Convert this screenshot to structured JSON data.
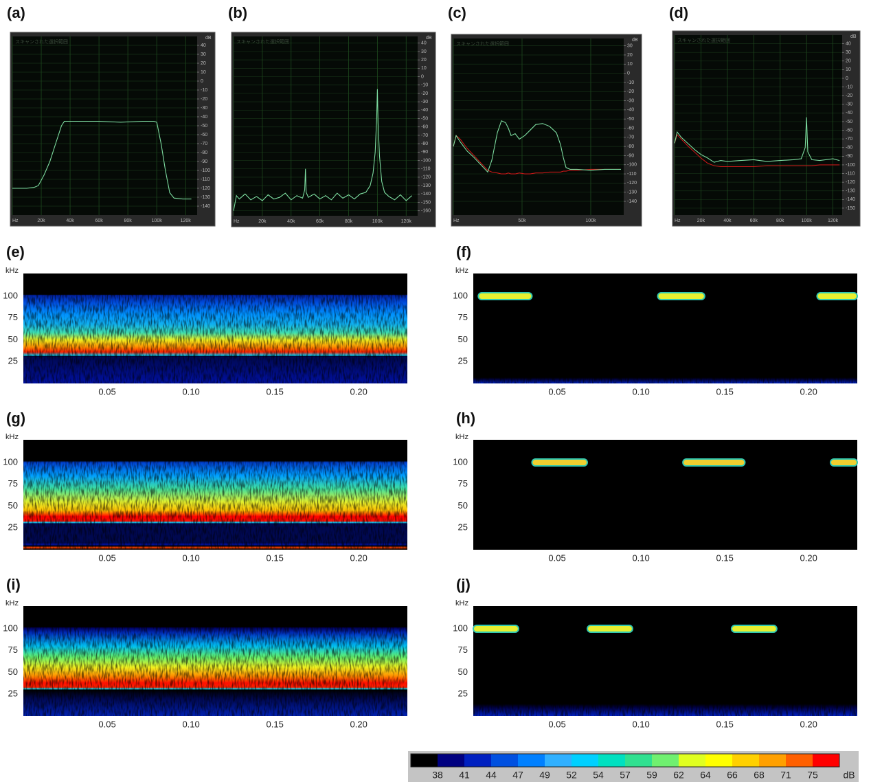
{
  "chart_data": [
    {
      "type": "line",
      "label": "(a)",
      "caption": "スキャンされた選択範囲",
      "y_unit": "dB",
      "grid": true,
      "xlim": [
        0,
        128000
      ],
      "ylim": [
        -150,
        50
      ],
      "xticks": [
        {
          "value": 0,
          "label": "Hz"
        },
        {
          "value": 20000,
          "label": "20k"
        },
        {
          "value": 40000,
          "label": "40k"
        },
        {
          "value": 60000,
          "label": "60k"
        },
        {
          "value": 80000,
          "label": "80k"
        },
        {
          "value": 100000,
          "label": "100k"
        },
        {
          "value": 120000,
          "label": "120k"
        }
      ],
      "yticks": [
        40,
        30,
        20,
        10,
        0,
        -10,
        -20,
        -30,
        -40,
        -50,
        -60,
        -70,
        -80,
        -90,
        -100,
        -110,
        -120,
        -130,
        -140
      ],
      "x": [
        0,
        5000,
        10000,
        15000,
        18000,
        22000,
        26000,
        30000,
        34000,
        36000,
        45000,
        60000,
        75000,
        90000,
        98000,
        100000,
        103000,
        106000,
        109000,
        112000,
        118000,
        124000
      ],
      "series": [
        {
          "color": "#7ddca0",
          "values": [
            -120,
            -120,
            -120,
            -119,
            -117,
            -105,
            -90,
            -70,
            -50,
            -45,
            -45,
            -45,
            -46,
            -45,
            -45,
            -46,
            -70,
            -100,
            -125,
            -131,
            -132,
            -132
          ]
        }
      ]
    },
    {
      "type": "line",
      "label": "(b)",
      "caption": "スキャンされた選択範囲",
      "y_unit": "dB",
      "grid": true,
      "xlim": [
        0,
        128000
      ],
      "ylim": [
        -166,
        48
      ],
      "xticks": [
        {
          "value": 0,
          "label": "Hz"
        },
        {
          "value": 20000,
          "label": "20k"
        },
        {
          "value": 40000,
          "label": "40k"
        },
        {
          "value": 60000,
          "label": "60k"
        },
        {
          "value": 80000,
          "label": "80k"
        },
        {
          "value": 100000,
          "label": "100k"
        },
        {
          "value": 120000,
          "label": "120k"
        }
      ],
      "yticks": [
        40,
        30,
        20,
        10,
        0,
        -10,
        -20,
        -30,
        -40,
        -50,
        -60,
        -70,
        -80,
        -90,
        -100,
        -110,
        -120,
        -130,
        -140,
        -150,
        -160
      ],
      "x": [
        0,
        2000,
        4000,
        8000,
        12000,
        16000,
        20000,
        24000,
        28000,
        32000,
        36000,
        40000,
        44000,
        48000,
        49500,
        50000,
        50500,
        52000,
        56000,
        60000,
        64000,
        68000,
        72000,
        76000,
        80000,
        84000,
        88000,
        92000,
        95000,
        97000,
        98500,
        99500,
        100000,
        100500,
        101500,
        103000,
        105000,
        108000,
        112000,
        116000,
        120000,
        124000
      ],
      "series": [
        {
          "color": "#7ddca0",
          "values": [
            -160,
            -142,
            -146,
            -140,
            -147,
            -143,
            -148,
            -141,
            -146,
            -144,
            -139,
            -147,
            -142,
            -145,
            -135,
            -110,
            -138,
            -144,
            -140,
            -146,
            -142,
            -147,
            -139,
            -145,
            -141,
            -146,
            -140,
            -138,
            -130,
            -115,
            -90,
            -50,
            -15,
            -55,
            -95,
            -125,
            -138,
            -143,
            -147,
            -141,
            -148,
            -142
          ]
        }
      ]
    },
    {
      "type": "line",
      "label": "(c)",
      "caption": "スキャンされた選択範囲",
      "y_unit": "dB",
      "grid": true,
      "xlim": [
        0,
        124000
      ],
      "ylim": [
        -155,
        38
      ],
      "xticks": [
        {
          "value": 0,
          "label": "Hz"
        },
        {
          "value": 50000,
          "label": "50k"
        },
        {
          "value": 100000,
          "label": "100k"
        }
      ],
      "yticks": [
        30,
        20,
        10,
        0,
        -10,
        -20,
        -30,
        -40,
        -50,
        -60,
        -70,
        -80,
        -90,
        -100,
        -110,
        -120,
        -130,
        -140
      ],
      "x": [
        0,
        2000,
        5000,
        10000,
        15000,
        20000,
        25000,
        28000,
        32000,
        35000,
        38000,
        40000,
        42000,
        45000,
        48000,
        52000,
        56000,
        60000,
        65000,
        70000,
        75000,
        78000,
        80000,
        82000,
        85000,
        90000,
        100000,
        110000,
        122000
      ],
      "series": [
        {
          "color": "#7ddca0",
          "values": [
            -80,
            -68,
            -75,
            -85,
            -92,
            -100,
            -108,
            -95,
            -65,
            -52,
            -54,
            -60,
            -68,
            -66,
            -72,
            -68,
            -62,
            -56,
            -55,
            -58,
            -65,
            -78,
            -92,
            -103,
            -105,
            -105,
            -106,
            -105,
            -105
          ]
        },
        {
          "color": "#c81818",
          "values": [
            -80,
            -68,
            -72,
            -82,
            -90,
            -98,
            -106,
            -108,
            -109,
            -110,
            -110,
            -109,
            -110,
            -110,
            -109,
            -110,
            -110,
            -109,
            -109,
            -108,
            -108,
            -108,
            -107,
            -107,
            -106,
            -106,
            -105,
            -105,
            -105
          ]
        }
      ]
    },
    {
      "type": "line",
      "label": "(d)",
      "caption": "スキャンされた選択範囲",
      "y_unit": "dB",
      "grid": true,
      "xlim": [
        0,
        127000
      ],
      "ylim": [
        -158,
        50
      ],
      "xticks": [
        {
          "value": 0,
          "label": "Hz"
        },
        {
          "value": 20000,
          "label": "20k"
        },
        {
          "value": 40000,
          "label": "40k"
        },
        {
          "value": 60000,
          "label": "60k"
        },
        {
          "value": 80000,
          "label": "80k"
        },
        {
          "value": 100000,
          "label": "100k"
        },
        {
          "value": 120000,
          "label": "120k"
        }
      ],
      "yticks": [
        40,
        30,
        20,
        10,
        0,
        -10,
        -20,
        -30,
        -40,
        -50,
        -60,
        -70,
        -80,
        -90,
        -100,
        -110,
        -120,
        -130,
        -140,
        -150
      ],
      "x": [
        0,
        2000,
        5000,
        10000,
        15000,
        20000,
        25000,
        30000,
        35000,
        40000,
        50000,
        60000,
        70000,
        80000,
        90000,
        96000,
        99000,
        100000,
        101000,
        104000,
        110000,
        120000,
        125000
      ],
      "series": [
        {
          "color": "#7ddca0",
          "values": [
            -75,
            -62,
            -68,
            -75,
            -82,
            -88,
            -92,
            -97,
            -95,
            -96,
            -95,
            -94,
            -96,
            -95,
            -94,
            -93,
            -80,
            -45,
            -85,
            -94,
            -95,
            -93,
            -95
          ]
        },
        {
          "color": "#c81818",
          "values": [
            -75,
            -65,
            -70,
            -78,
            -85,
            -92,
            -98,
            -101,
            -102,
            -102,
            -102,
            -102,
            -101,
            -101,
            -101,
            -101,
            -101,
            -101,
            -101,
            -101,
            -100,
            -100,
            -100
          ]
        }
      ]
    },
    {
      "type": "heatmap",
      "label": "(e)",
      "y_label": "kHz",
      "xlim": [
        0,
        0.229
      ],
      "ylim": [
        0,
        126
      ],
      "xticks": [
        0.05,
        {
          "value": 0.1,
          "label": "0.10"
        },
        0.15,
        {
          "value": 0.2,
          "label": "0.20"
        }
      ],
      "yticks": [
        25,
        50,
        75,
        100
      ],
      "profile": {
        "khz": [
          0,
          31,
          31.5,
          32,
          36,
          42,
          50,
          58,
          68,
          80,
          92,
          101,
          102,
          126
        ],
        "colors": [
          "#0010a0",
          "#000850",
          "#000000",
          "#00d0ff",
          "#ff2000",
          "#ff9000",
          "#f0f020",
          "#40e0b0",
          "#10b0f0",
          "#0090ff",
          "#0050e0",
          "#0020a0",
          "#000000",
          "#000000"
        ]
      }
    },
    {
      "type": "heatmap",
      "label": "(f)",
      "y_label": "kHz",
      "xlim": [
        0,
        0.229
      ],
      "ylim": [
        0,
        126
      ],
      "xticks": [
        0.05,
        {
          "value": 0.1,
          "label": "0.10"
        },
        0.15,
        {
          "value": 0.2,
          "label": "0.20"
        }
      ],
      "yticks": [
        25,
        50,
        75,
        100
      ],
      "profile": {
        "khz": [
          0,
          5,
          7,
          126
        ],
        "colors": [
          "#0020c0",
          "#000030",
          "#000000",
          "#000000"
        ]
      },
      "pulse_color": "#e8f030",
      "pulses": [
        {
          "start": 0.003,
          "end": 0.035,
          "khz": 100
        },
        {
          "start": 0.11,
          "end": 0.138,
          "khz": 100
        },
        {
          "start": 0.205,
          "end": 0.229,
          "khz": 100
        }
      ]
    },
    {
      "type": "heatmap",
      "label": "(g)",
      "y_label": "kHz",
      "xlim": [
        0,
        0.229
      ],
      "ylim": [
        0,
        126
      ],
      "xticks": [
        0.05,
        {
          "value": 0.1,
          "label": "0.10"
        },
        0.15,
        {
          "value": 0.2,
          "label": "0.20"
        }
      ],
      "yticks": [
        25,
        50,
        75,
        100
      ],
      "profile": {
        "khz": [
          0,
          3,
          4,
          6,
          8,
          30,
          31,
          33,
          38,
          45,
          55,
          70,
          85,
          100,
          102,
          126
        ],
        "colors": [
          "#000000",
          "#ff4000",
          "#000000",
          "#0010a0",
          "#000850",
          "#000850",
          "#00d0ff",
          "#ff1000",
          "#ff0000",
          "#ffc000",
          "#e0f030",
          "#40e0a0",
          "#00a0ff",
          "#0040d0",
          "#000000",
          "#000000"
        ]
      }
    },
    {
      "type": "heatmap",
      "label": "(h)",
      "y_label": "kHz",
      "xlim": [
        0,
        0.229
      ],
      "ylim": [
        0,
        126
      ],
      "xticks": [
        0.05,
        {
          "value": 0.1,
          "label": "0.10"
        },
        0.15,
        {
          "value": 0.2,
          "label": "0.20"
        }
      ],
      "yticks": [
        25,
        50,
        75,
        100
      ],
      "profile": {
        "khz": [
          0,
          126
        ],
        "colors": [
          "#000000",
          "#000000"
        ]
      },
      "pulse_color": "#f0d030",
      "pulses": [
        {
          "start": 0.035,
          "end": 0.068,
          "khz": 100
        },
        {
          "start": 0.125,
          "end": 0.162,
          "khz": 100
        },
        {
          "start": 0.213,
          "end": 0.229,
          "khz": 100
        }
      ]
    },
    {
      "type": "heatmap",
      "label": "(i)",
      "y_label": "kHz",
      "xlim": [
        0,
        0.229
      ],
      "ylim": [
        0,
        126
      ],
      "xticks": [
        0.05,
        {
          "value": 0.1,
          "label": "0.10"
        },
        0.15,
        {
          "value": 0.2,
          "label": "0.20"
        }
      ],
      "yticks": [
        25,
        50,
        75,
        100
      ],
      "profile": {
        "khz": [
          0,
          20,
          30,
          31,
          33,
          38,
          46,
          56,
          68,
          80,
          95,
          101,
          102,
          126
        ],
        "colors": [
          "#0020b0",
          "#000850",
          "#000000",
          "#00e0ff",
          "#ff2000",
          "#ff1000",
          "#ff9000",
          "#f0f020",
          "#60f070",
          "#00c0f0",
          "#0030c0",
          "#000060",
          "#000000",
          "#000000"
        ]
      }
    },
    {
      "type": "heatmap",
      "label": "(j)",
      "y_label": "kHz",
      "xlim": [
        0,
        0.229
      ],
      "ylim": [
        0,
        126
      ],
      "xticks": [
        0.05,
        {
          "value": 0.1,
          "label": "0.10"
        },
        0.15,
        {
          "value": 0.2,
          "label": "0.20"
        }
      ],
      "yticks": [
        25,
        50,
        75,
        100
      ],
      "profile": {
        "khz": [
          0,
          10,
          14,
          126
        ],
        "colors": [
          "#0020c0",
          "#000040",
          "#000000",
          "#000000"
        ]
      },
      "pulse_color": "#e8f030",
      "pulses": [
        {
          "start": 0.0,
          "end": 0.027,
          "khz": 100
        },
        {
          "start": 0.068,
          "end": 0.095,
          "khz": 100
        },
        {
          "start": 0.154,
          "end": 0.181,
          "khz": 100
        }
      ]
    }
  ],
  "colorbar": {
    "unit": "dB",
    "colors": [
      "#000000",
      "#000080",
      "#0020c0",
      "#0050e0",
      "#0080ff",
      "#30b0ff",
      "#00d0ff",
      "#00e0c0",
      "#30e090",
      "#70f070",
      "#e0ff20",
      "#ffff00",
      "#ffd000",
      "#ffa000",
      "#ff6000",
      "#ff0000"
    ],
    "ticks": [
      38,
      41,
      44,
      47,
      49,
      52,
      54,
      57,
      59,
      62,
      64,
      66,
      68,
      71,
      75
    ]
  }
}
